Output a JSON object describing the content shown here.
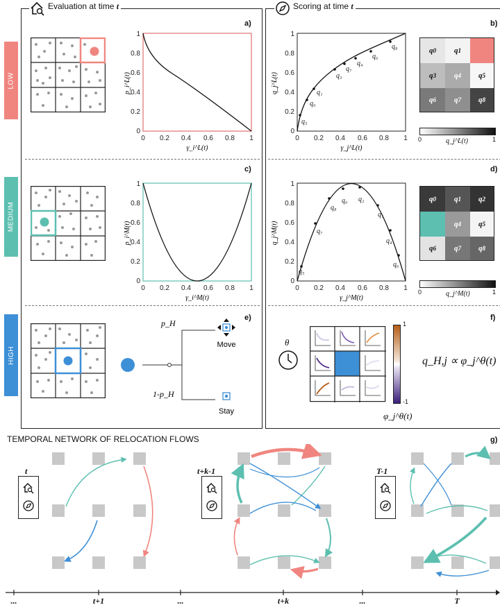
{
  "header": {
    "left_title": "Evaluation at time",
    "left_time": "t",
    "right_title": "Scoring at time",
    "right_time": "t"
  },
  "bands": {
    "low": "LOW",
    "medium": "MEDIUM",
    "high": "HIGH"
  },
  "colors": {
    "low": "#f0857f",
    "medium": "#5dbfb0",
    "high": "#3d8fd6",
    "pos": "#c46a1c",
    "neg": "#5a3a9a"
  },
  "panel_labels": {
    "a": "a)",
    "b": "b)",
    "c": "c)",
    "d": "d)",
    "e": "e)",
    "f": "f)",
    "g": "g)"
  },
  "plot_a": {
    "ylabel": "p_i^L(t)",
    "xlabel": "γ_i^L(t)",
    "xticks": [
      "0",
      "0.2",
      "0.4",
      "0.6",
      "0.8",
      "1"
    ],
    "yticks": [
      "0",
      "0.2",
      "0.4",
      "0.6",
      "0.8",
      "1"
    ]
  },
  "plot_c": {
    "ylabel": "p_i^M(t)",
    "xlabel": "γ_i^M(t)",
    "xticks": [
      "0",
      "0.2",
      "0.4",
      "0.6",
      "0.8",
      "1"
    ],
    "yticks": [
      "0",
      "0.2",
      "0.4",
      "0.6",
      "0.8",
      "1"
    ]
  },
  "plot_b": {
    "ylabel": "q_j^L(t)",
    "xlabel": "γ_j^L(t)",
    "xticks": [
      "0",
      "0.2",
      "0.4",
      "0.6",
      "0.8",
      "1"
    ],
    "yticks": [
      "0",
      "0.2",
      "0.4",
      "0.6",
      "0.8",
      "1"
    ],
    "points": [
      "q5",
      "q0",
      "q1",
      "q3",
      "q7",
      "q4",
      "q6",
      "q8"
    ]
  },
  "plot_d": {
    "ylabel": "q_j^M(t)",
    "xlabel": "γ_j^M(t)",
    "xticks": [
      "0",
      "0.2",
      "0.4",
      "0.6",
      "0.8",
      "1"
    ],
    "yticks": [
      "0",
      "0.2",
      "0.4",
      "0.6",
      "0.8",
      "1"
    ],
    "points": [
      "q5",
      "q7",
      "q8",
      "q0",
      "q2",
      "q1",
      "q4",
      "q6"
    ]
  },
  "grid_b": {
    "cells": [
      "q0",
      "q1",
      "",
      "q3",
      "q4",
      "q5",
      "q6",
      "q7",
      "q8"
    ],
    "sup": "M",
    "colorbar_min": "0",
    "colorbar_max": "1",
    "colorbar_label": "q_j^L(t)"
  },
  "grid_d": {
    "cells": [
      "q0",
      "q1",
      "q2",
      "",
      "q4",
      "q5",
      "q6",
      "q7",
      "q8"
    ],
    "sup": "M",
    "colorbar_min": "0",
    "colorbar_max": "1",
    "colorbar_label": "q_j^M(t)"
  },
  "panel_e": {
    "p_label": "p_H",
    "q_label": "1-p_H",
    "move": "Move",
    "stay": "Stay"
  },
  "panel_f": {
    "theta": "θ",
    "cb_max": "1",
    "cb_min": "-1",
    "cb_label": "φ_j^θ(t)",
    "formula": "q_H,j ∝ φ_j^θ(t)"
  },
  "section_g": {
    "title": "TEMPORAL NETWORK OF RELOCATION FLOWS"
  },
  "timeline": {
    "snapshot_labels": [
      "t",
      "t+k-1",
      "T-1"
    ],
    "ticks": [
      "...",
      "t+1",
      "...",
      "t+k",
      "...",
      "T"
    ]
  }
}
